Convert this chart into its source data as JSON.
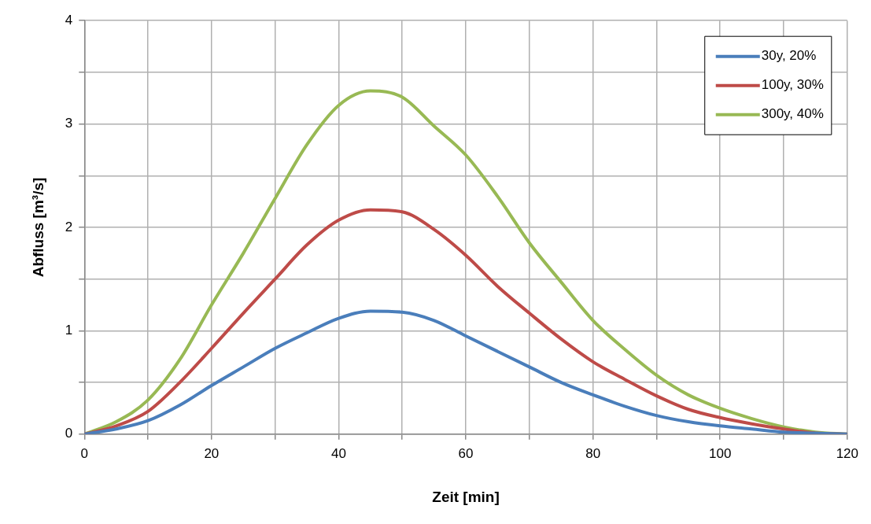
{
  "chart_data": {
    "type": "line",
    "xlabel": "Zeit [min]",
    "ylabel": "Abfluss [m³/s]",
    "x": [
      0,
      5,
      10,
      15,
      20,
      25,
      30,
      35,
      40,
      45,
      50,
      55,
      60,
      65,
      70,
      75,
      80,
      85,
      90,
      95,
      100,
      105,
      110,
      115,
      120
    ],
    "series": [
      {
        "name": "30y, 20%",
        "color": "#4a7ebb",
        "values": [
          0,
          0.05,
          0.13,
          0.28,
          0.47,
          0.65,
          0.83,
          0.98,
          1.12,
          1.19,
          1.18,
          1.1,
          0.95,
          0.8,
          0.65,
          0.5,
          0.38,
          0.27,
          0.18,
          0.12,
          0.08,
          0.05,
          0.02,
          0.01,
          0
        ]
      },
      {
        "name": "100y, 30%",
        "color": "#be4b48",
        "values": [
          0,
          0.08,
          0.22,
          0.5,
          0.83,
          1.17,
          1.5,
          1.83,
          2.07,
          2.17,
          2.15,
          1.98,
          1.73,
          1.43,
          1.17,
          0.92,
          0.7,
          0.53,
          0.37,
          0.24,
          0.16,
          0.1,
          0.05,
          0.01,
          0
        ]
      },
      {
        "name": "300y, 40%",
        "color": "#98b954",
        "values": [
          0,
          0.12,
          0.33,
          0.72,
          1.25,
          1.75,
          2.28,
          2.8,
          3.18,
          3.32,
          3.26,
          2.98,
          2.7,
          2.3,
          1.85,
          1.47,
          1.1,
          0.82,
          0.57,
          0.38,
          0.25,
          0.15,
          0.07,
          0.02,
          0
        ]
      }
    ],
    "xlim": [
      0,
      120
    ],
    "xticks": [
      0,
      {
        "value": 10,
        "label": null
      },
      20,
      {
        "value": 30,
        "label": null
      },
      40,
      {
        "value": 50,
        "label": null
      },
      60,
      {
        "value": 70,
        "label": null
      },
      80,
      {
        "value": 90,
        "label": null
      },
      100,
      {
        "value": 110,
        "label": null
      },
      120
    ],
    "ylim": [
      0,
      4
    ],
    "yticks": [
      0,
      {
        "value": 0.5,
        "label": null
      },
      1,
      {
        "value": 1.5,
        "label": null
      },
      2,
      {
        "value": 2.5,
        "label": null
      },
      3,
      {
        "value": 3.5,
        "label": null
      },
      4
    ],
    "grid": true,
    "legend": "top right",
    "marker": "none",
    "line_style": "solid"
  }
}
